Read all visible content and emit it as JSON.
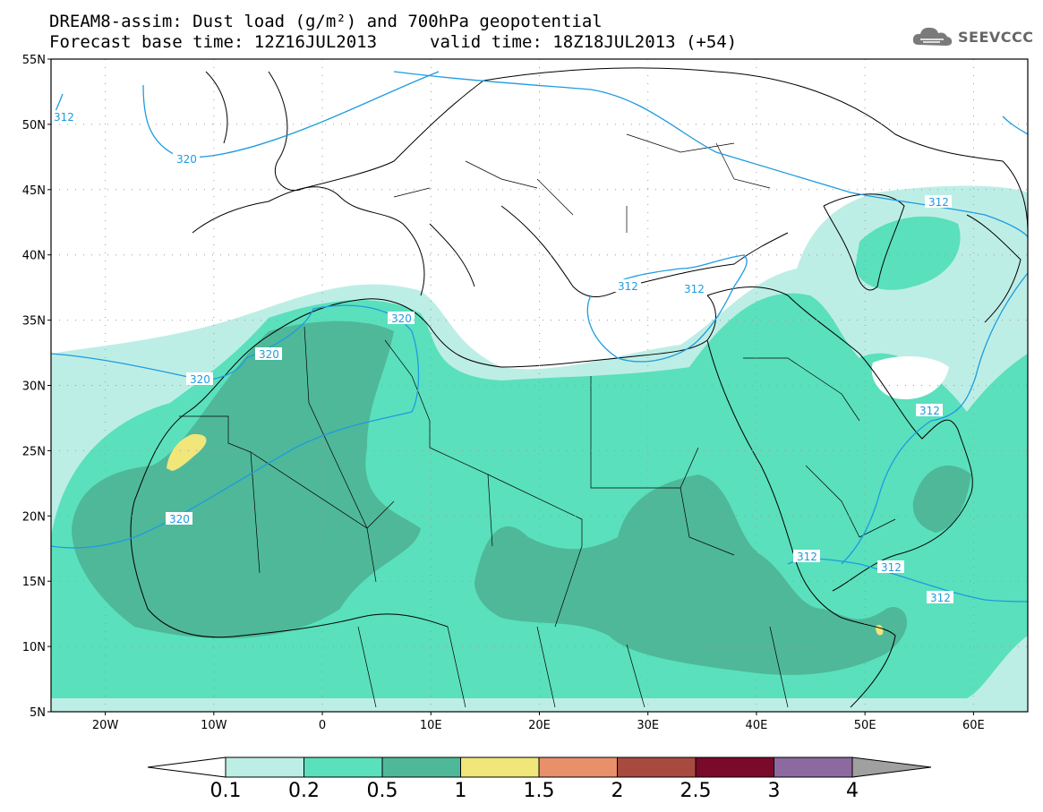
{
  "title": {
    "line1": "DREAM8-assim: Dust load (g/m²) and 700hPa geopotential",
    "line2": "Forecast base time: 12Z16JUL2013",
    "valid": "valid time: 18Z18JUL2013 (+54)"
  },
  "logo": {
    "text": "SEEVCCC",
    "icon": "cloud-icon"
  },
  "axes": {
    "lat_labels": [
      "55N",
      "50N",
      "45N",
      "40N",
      "35N",
      "30N",
      "25N",
      "20N",
      "15N",
      "10N",
      "5N"
    ],
    "lon_labels": [
      "20W",
      "10W",
      "0",
      "10E",
      "20E",
      "30E",
      "40E",
      "50E",
      "60E"
    ]
  },
  "map": {
    "extent": {
      "lon": [
        -25,
        65
      ],
      "lat": [
        5,
        55
      ]
    },
    "contour_labels": [
      "312",
      "320",
      "320",
      "320",
      "320",
      "320",
      "312",
      "312",
      "312",
      "312",
      "312",
      "312",
      "312"
    ]
  },
  "colorbar": {
    "levels": [
      "0.1",
      "0.2",
      "0.5",
      "1",
      "1.5",
      "2",
      "2.5",
      "3",
      "4"
    ],
    "colors": [
      "#bdeee6",
      "#5ae0bc",
      "#4fb898",
      "#f0e67a",
      "#e8906a",
      "#a84a40",
      "#7a0a2a",
      "#8c6aa0",
      "#a0a0a0"
    ]
  },
  "colors": {
    "contour": "#1e9be0",
    "land_border": "#000000",
    "dust_low": "#bdeee6",
    "dust_mid": "#5ae0bc",
    "dust_high": "#4fb898",
    "dust_peak": "#f0e67a"
  }
}
